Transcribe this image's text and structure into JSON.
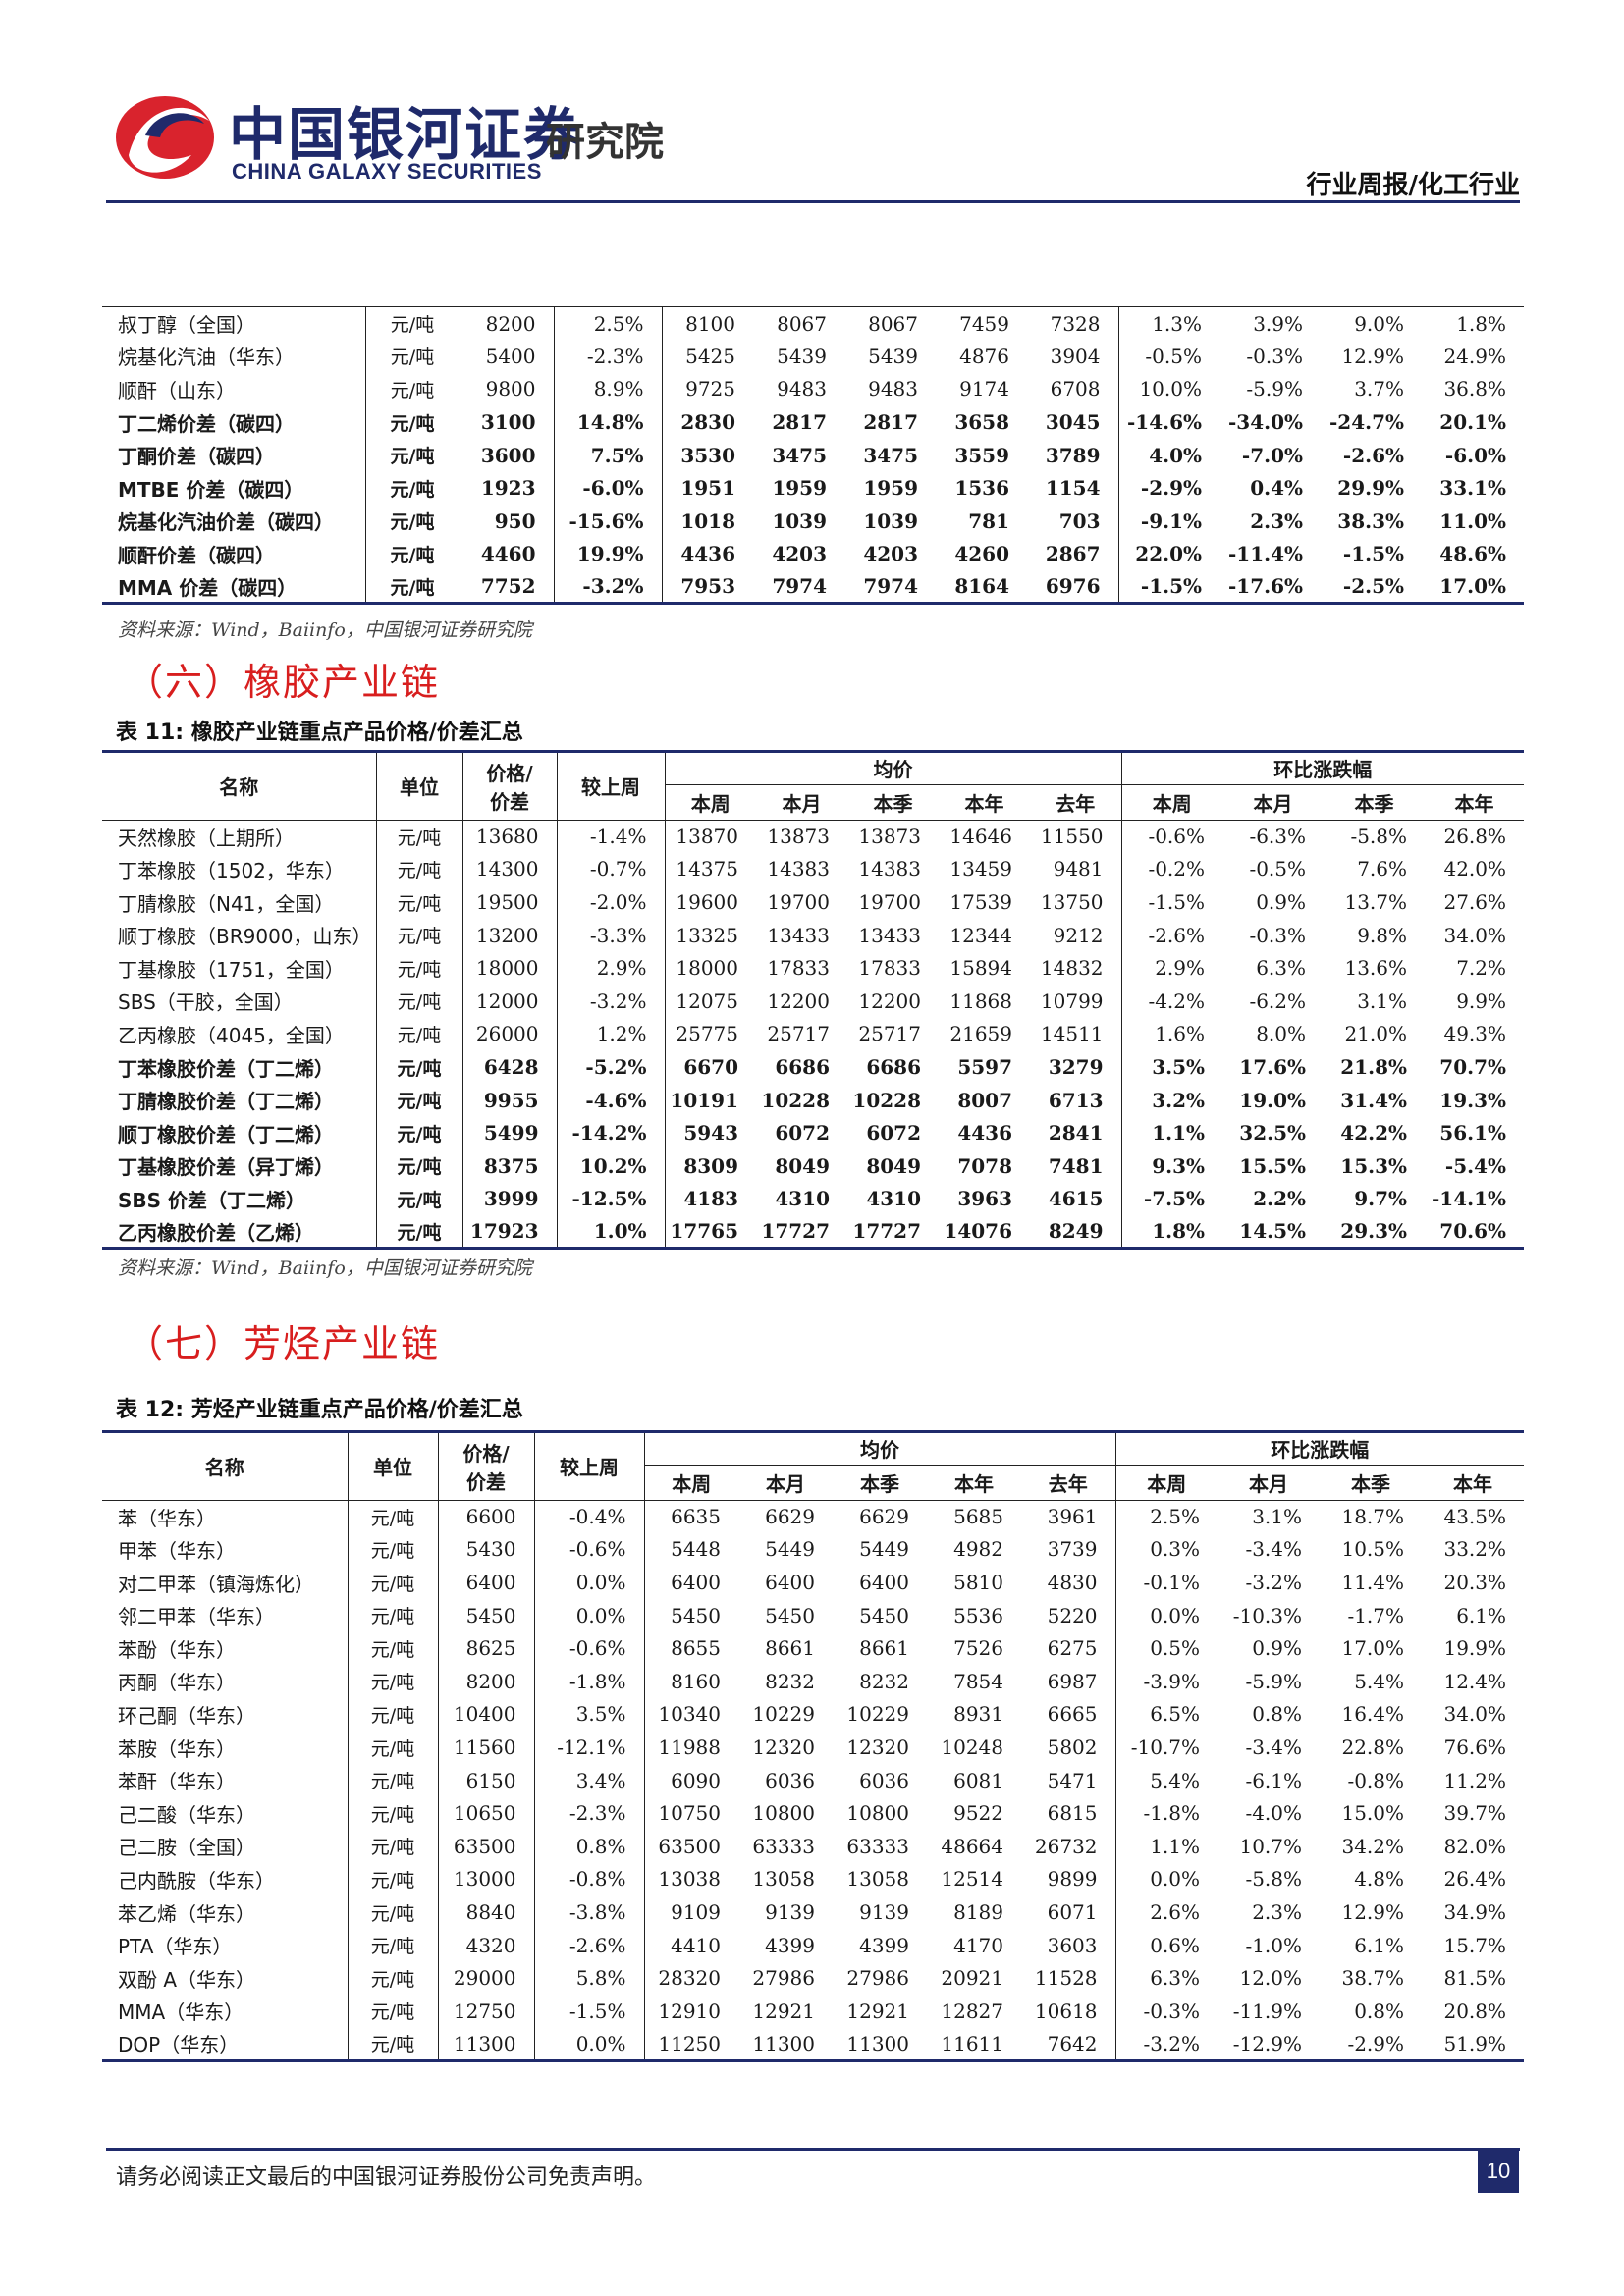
{
  "header": {
    "logo_cn": "中国银河证券",
    "logo_en": "CHINA GALAXY SECURITIES",
    "logo_inst": "研究院",
    "report_type": "行业周报/化工行业"
  },
  "table10": {
    "rows": [
      {
        "bold": false,
        "cells": [
          "叔丁醇（全国）",
          "元/吨",
          "8200",
          "2.5%",
          "8100",
          "8067",
          "8067",
          "7459",
          "7328",
          "1.3%",
          "3.9%",
          "9.0%",
          "1.8%"
        ]
      },
      {
        "bold": false,
        "cells": [
          "烷基化汽油（华东）",
          "元/吨",
          "5400",
          "-2.3%",
          "5425",
          "5439",
          "5439",
          "4876",
          "3904",
          "-0.5%",
          "-0.3%",
          "12.9%",
          "24.9%"
        ]
      },
      {
        "bold": false,
        "cells": [
          "顺酐（山东）",
          "元/吨",
          "9800",
          "8.9%",
          "9725",
          "9483",
          "9483",
          "9174",
          "6708",
          "10.0%",
          "-5.9%",
          "3.7%",
          "36.8%"
        ]
      },
      {
        "bold": true,
        "cells": [
          "丁二烯价差（碳四）",
          "元/吨",
          "3100",
          "14.8%",
          "2830",
          "2817",
          "2817",
          "3658",
          "3045",
          "-14.6%",
          "-34.0%",
          "-24.7%",
          "20.1%"
        ]
      },
      {
        "bold": true,
        "cells": [
          "丁酮价差（碳四）",
          "元/吨",
          "3600",
          "7.5%",
          "3530",
          "3475",
          "3475",
          "3559",
          "3789",
          "4.0%",
          "-7.0%",
          "-2.6%",
          "-6.0%"
        ]
      },
      {
        "bold": true,
        "cells": [
          "MTBE 价差（碳四）",
          "元/吨",
          "1923",
          "-6.0%",
          "1951",
          "1959",
          "1959",
          "1536",
          "1154",
          "-2.9%",
          "0.4%",
          "29.9%",
          "33.1%"
        ]
      },
      {
        "bold": true,
        "cells": [
          "烷基化汽油价差（碳四）",
          "元/吨",
          "950",
          "-15.6%",
          "1018",
          "1039",
          "1039",
          "781",
          "703",
          "-9.1%",
          "2.3%",
          "38.3%",
          "11.0%"
        ]
      },
      {
        "bold": true,
        "cells": [
          "顺酐价差（碳四）",
          "元/吨",
          "4460",
          "19.9%",
          "4436",
          "4203",
          "4203",
          "4260",
          "2867",
          "22.0%",
          "-11.4%",
          "-1.5%",
          "48.6%"
        ]
      },
      {
        "bold": true,
        "cells": [
          "MMA 价差（碳四）",
          "元/吨",
          "7752",
          "-3.2%",
          "7953",
          "7974",
          "7974",
          "8164",
          "6976",
          "-1.5%",
          "-17.6%",
          "-2.5%",
          "17.0%"
        ]
      }
    ]
  },
  "source_label": "资料来源：Wind，Baiinfo，中国银河证券研究院",
  "section6": {
    "title": "（六）橡胶产业链"
  },
  "table11": {
    "caption": "表 11:  橡胶产业链重点产品价格/价差汇总",
    "headers": {
      "name": "名称",
      "unit": "单位",
      "price_line1": "价格/",
      "price_line2": "价差",
      "wow": "较上周",
      "avg_group": "均价",
      "chg_group": "环比涨跌幅",
      "periods": [
        "本周",
        "本月",
        "本季",
        "本年",
        "去年"
      ],
      "chg_periods": [
        "本周",
        "本月",
        "本季",
        "本年"
      ]
    },
    "rows": [
      {
        "bold": false,
        "cells": [
          "天然橡胶（上期所）",
          "元/吨",
          "13680",
          "-1.4%",
          "13870",
          "13873",
          "13873",
          "14646",
          "11550",
          "-0.6%",
          "-6.3%",
          "-5.8%",
          "26.8%"
        ]
      },
      {
        "bold": false,
        "cells": [
          "丁苯橡胶（1502，华东）",
          "元/吨",
          "14300",
          "-0.7%",
          "14375",
          "14383",
          "14383",
          "13459",
          "9481",
          "-0.2%",
          "-0.5%",
          "7.6%",
          "42.0%"
        ]
      },
      {
        "bold": false,
        "cells": [
          "丁腈橡胶（N41，全国）",
          "元/吨",
          "19500",
          "-2.0%",
          "19600",
          "19700",
          "19700",
          "17539",
          "13750",
          "-1.5%",
          "0.9%",
          "13.7%",
          "27.6%"
        ]
      },
      {
        "bold": false,
        "cells": [
          "顺丁橡胶（BR9000，山东）",
          "元/吨",
          "13200",
          "-3.3%",
          "13325",
          "13433",
          "13433",
          "12344",
          "9212",
          "-2.6%",
          "-0.3%",
          "9.8%",
          "34.0%"
        ]
      },
      {
        "bold": false,
        "cells": [
          "丁基橡胶（1751，全国）",
          "元/吨",
          "18000",
          "2.9%",
          "18000",
          "17833",
          "17833",
          "15894",
          "14832",
          "2.9%",
          "6.3%",
          "13.6%",
          "7.2%"
        ]
      },
      {
        "bold": false,
        "cells": [
          "SBS（干胶，全国）",
          "元/吨",
          "12000",
          "-3.2%",
          "12075",
          "12200",
          "12200",
          "11868",
          "10799",
          "-4.2%",
          "-6.2%",
          "3.1%",
          "9.9%"
        ]
      },
      {
        "bold": false,
        "cells": [
          "乙丙橡胶（4045，全国）",
          "元/吨",
          "26000",
          "1.2%",
          "25775",
          "25717",
          "25717",
          "21659",
          "14511",
          "1.6%",
          "8.0%",
          "21.0%",
          "49.3%"
        ]
      },
      {
        "bold": true,
        "cells": [
          "丁苯橡胶价差（丁二烯）",
          "元/吨",
          "6428",
          "-5.2%",
          "6670",
          "6686",
          "6686",
          "5597",
          "3279",
          "3.5%",
          "17.6%",
          "21.8%",
          "70.7%"
        ]
      },
      {
        "bold": true,
        "cells": [
          "丁腈橡胶价差（丁二烯）",
          "元/吨",
          "9955",
          "-4.6%",
          "10191",
          "10228",
          "10228",
          "8007",
          "6713",
          "3.2%",
          "19.0%",
          "31.4%",
          "19.3%"
        ]
      },
      {
        "bold": true,
        "cells": [
          "顺丁橡胶价差（丁二烯）",
          "元/吨",
          "5499",
          "-14.2%",
          "5943",
          "6072",
          "6072",
          "4436",
          "2841",
          "1.1%",
          "32.5%",
          "42.2%",
          "56.1%"
        ]
      },
      {
        "bold": true,
        "cells": [
          "丁基橡胶价差（异丁烯）",
          "元/吨",
          "8375",
          "10.2%",
          "8309",
          "8049",
          "8049",
          "7078",
          "7481",
          "9.3%",
          "15.5%",
          "15.3%",
          "-5.4%"
        ]
      },
      {
        "bold": true,
        "cells": [
          "SBS 价差（丁二烯）",
          "元/吨",
          "3999",
          "-12.5%",
          "4183",
          "4310",
          "4310",
          "3963",
          "4615",
          "-7.5%",
          "2.2%",
          "9.7%",
          "-14.1%"
        ]
      },
      {
        "bold": true,
        "cells": [
          "乙丙橡胶价差（乙烯）",
          "元/吨",
          "17923",
          "1.0%",
          "17765",
          "17727",
          "17727",
          "14076",
          "8249",
          "1.8%",
          "14.5%",
          "29.3%",
          "70.6%"
        ]
      }
    ]
  },
  "section7": {
    "title": "（七）芳烃产业链"
  },
  "table12": {
    "caption": "表 12:  芳烃产业链重点产品价格/价差汇总",
    "headers": {
      "name": "名称",
      "unit": "单位",
      "price_line1": "价格/",
      "price_line2": "价差",
      "wow": "较上周",
      "avg_group": "均价",
      "chg_group": "环比涨跌幅",
      "periods": [
        "本周",
        "本月",
        "本季",
        "本年",
        "去年"
      ],
      "chg_periods": [
        "本周",
        "本月",
        "本季",
        "本年"
      ]
    },
    "rows": [
      {
        "bold": false,
        "cells": [
          "苯（华东）",
          "元/吨",
          "6600",
          "-0.4%",
          "6635",
          "6629",
          "6629",
          "5685",
          "3961",
          "2.5%",
          "3.1%",
          "18.7%",
          "43.5%"
        ]
      },
      {
        "bold": false,
        "cells": [
          "甲苯（华东）",
          "元/吨",
          "5430",
          "-0.6%",
          "5448",
          "5449",
          "5449",
          "4982",
          "3739",
          "0.3%",
          "-3.4%",
          "10.5%",
          "33.2%"
        ]
      },
      {
        "bold": false,
        "cells": [
          "对二甲苯（镇海炼化）",
          "元/吨",
          "6400",
          "0.0%",
          "6400",
          "6400",
          "6400",
          "5810",
          "4830",
          "-0.1%",
          "-3.2%",
          "11.4%",
          "20.3%"
        ]
      },
      {
        "bold": false,
        "cells": [
          "邻二甲苯（华东）",
          "元/吨",
          "5450",
          "0.0%",
          "5450",
          "5450",
          "5450",
          "5536",
          "5220",
          "0.0%",
          "-10.3%",
          "-1.7%",
          "6.1%"
        ]
      },
      {
        "bold": false,
        "cells": [
          "苯酚（华东）",
          "元/吨",
          "8625",
          "-0.6%",
          "8655",
          "8661",
          "8661",
          "7526",
          "6275",
          "0.5%",
          "0.9%",
          "17.0%",
          "19.9%"
        ]
      },
      {
        "bold": false,
        "cells": [
          "丙酮（华东）",
          "元/吨",
          "8200",
          "-1.8%",
          "8160",
          "8232",
          "8232",
          "7854",
          "6987",
          "-3.9%",
          "-5.9%",
          "5.4%",
          "12.4%"
        ]
      },
      {
        "bold": false,
        "cells": [
          "环己酮（华东）",
          "元/吨",
          "10400",
          "3.5%",
          "10340",
          "10229",
          "10229",
          "8931",
          "6665",
          "6.5%",
          "0.8%",
          "16.4%",
          "34.0%"
        ]
      },
      {
        "bold": false,
        "cells": [
          "苯胺（华东）",
          "元/吨",
          "11560",
          "-12.1%",
          "11988",
          "12320",
          "12320",
          "10248",
          "5802",
          "-10.7%",
          "-3.4%",
          "22.8%",
          "76.6%"
        ]
      },
      {
        "bold": false,
        "cells": [
          "苯酐（华东）",
          "元/吨",
          "6150",
          "3.4%",
          "6090",
          "6036",
          "6036",
          "6081",
          "5471",
          "5.4%",
          "-6.1%",
          "-0.8%",
          "11.2%"
        ]
      },
      {
        "bold": false,
        "cells": [
          "己二酸（华东）",
          "元/吨",
          "10650",
          "-2.3%",
          "10750",
          "10800",
          "10800",
          "9522",
          "6815",
          "-1.8%",
          "-4.0%",
          "15.0%",
          "39.7%"
        ]
      },
      {
        "bold": false,
        "cells": [
          "己二胺（全国）",
          "元/吨",
          "63500",
          "0.8%",
          "63500",
          "63333",
          "63333",
          "48664",
          "26732",
          "1.1%",
          "10.7%",
          "34.2%",
          "82.0%"
        ]
      },
      {
        "bold": false,
        "cells": [
          "己内酰胺（华东）",
          "元/吨",
          "13000",
          "-0.8%",
          "13038",
          "13058",
          "13058",
          "12514",
          "9899",
          "0.0%",
          "-5.8%",
          "4.8%",
          "26.4%"
        ]
      },
      {
        "bold": false,
        "cells": [
          "苯乙烯（华东）",
          "元/吨",
          "8840",
          "-3.8%",
          "9109",
          "9139",
          "9139",
          "8189",
          "6071",
          "2.6%",
          "2.3%",
          "12.9%",
          "34.9%"
        ]
      },
      {
        "bold": false,
        "cells": [
          "PTA（华东）",
          "元/吨",
          "4320",
          "-2.6%",
          "4410",
          "4399",
          "4399",
          "4170",
          "3603",
          "0.6%",
          "-1.0%",
          "6.1%",
          "15.7%"
        ]
      },
      {
        "bold": false,
        "cells": [
          "双酚 A（华东）",
          "元/吨",
          "29000",
          "5.8%",
          "28320",
          "27986",
          "27986",
          "20921",
          "11528",
          "6.3%",
          "12.0%",
          "38.7%",
          "81.5%"
        ]
      },
      {
        "bold": false,
        "cells": [
          "MMA（华东）",
          "元/吨",
          "12750",
          "-1.5%",
          "12910",
          "12921",
          "12921",
          "12827",
          "10618",
          "-0.3%",
          "-11.9%",
          "0.8%",
          "20.8%"
        ]
      },
      {
        "bold": false,
        "cells": [
          "DOP（华东）",
          "元/吨",
          "11300",
          "0.0%",
          "11250",
          "11300",
          "11300",
          "11611",
          "7642",
          "-3.2%",
          "-12.9%",
          "-2.9%",
          "51.9%"
        ]
      }
    ]
  },
  "footer": {
    "disclaimer": "请务必阅读正文最后的中国银河证券股份公司免责声明。",
    "page_number": "10"
  }
}
